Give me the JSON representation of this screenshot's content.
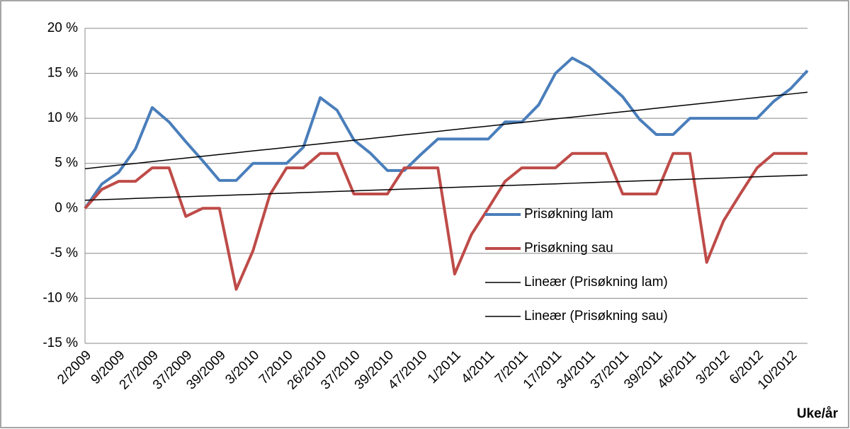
{
  "chart_data": {
    "type": "line",
    "x_label": "Uke/år",
    "categories": [
      "2/2009",
      null,
      "9/2009",
      null,
      "27/2009",
      null,
      "37/2009",
      null,
      "39/2009",
      null,
      "3/2010",
      null,
      "7/2010",
      null,
      "26/2010",
      null,
      "37/2010",
      null,
      "39/2010",
      null,
      "47/2010",
      null,
      "1/2011",
      null,
      "4/2011",
      null,
      "7/2011",
      null,
      "17/2011",
      null,
      "34/2011",
      null,
      "37/2011",
      null,
      "39/2011",
      null,
      "46/2011",
      null,
      "3/2012",
      null,
      "6/2012",
      null,
      "10/2012",
      null
    ],
    "series": [
      {
        "name": "Prisøkning lam",
        "color": "#4a7ebb",
        "width": 4,
        "values": [
          0,
          2.7,
          4,
          6.6,
          11.2,
          9.6,
          7.4,
          5.3,
          3.1,
          3.1,
          5,
          5,
          5,
          6.8,
          12.3,
          10.9,
          7.6,
          6.1,
          4.2,
          4.2,
          6,
          7.7,
          7.7,
          7.7,
          7.7,
          9.6,
          9.6,
          11.5,
          15,
          16.7,
          15.7,
          14.1,
          12.4,
          9.9,
          8.2,
          8.2,
          10,
          10,
          10,
          10,
          10,
          11.9,
          13.3,
          15.3
        ]
      },
      {
        "name": "Prisøkning sau",
        "color": "#be4b48",
        "width": 4,
        "values": [
          0,
          2.1,
          3,
          3,
          4.5,
          4.5,
          -0.9,
          0,
          0,
          -9,
          -4.7,
          1.5,
          4.5,
          4.5,
          6.1,
          6.1,
          1.6,
          1.6,
          1.6,
          4.5,
          4.5,
          4.5,
          -7.3,
          -2.9,
          0,
          3,
          4.5,
          4.5,
          4.5,
          6.1,
          6.1,
          6.1,
          1.6,
          1.6,
          1.6,
          6.1,
          6.1,
          -6,
          -1.4,
          1.6,
          4.5,
          6.1,
          6.1,
          6.1
        ]
      },
      {
        "name": "Lineær (Prisøkning lam)",
        "color": "#000000",
        "width": 1.5,
        "values": [
          4.4,
          4.6,
          4.8,
          4.99,
          5.19,
          5.39,
          5.59,
          5.78,
          5.98,
          6.18,
          6.38,
          6.57,
          6.77,
          6.97,
          7.17,
          7.37,
          7.56,
          7.76,
          7.96,
          8.16,
          8.35,
          8.55,
          8.75,
          8.95,
          9.14,
          9.34,
          9.54,
          9.74,
          9.94,
          10.13,
          10.33,
          10.53,
          10.73,
          10.92,
          11.12,
          11.32,
          11.52,
          11.71,
          11.91,
          12.11,
          12.31,
          12.5,
          12.7,
          12.9
        ]
      },
      {
        "name": "Lineær (Prisøkning sau)",
        "color": "#000000",
        "width": 1.5,
        "values": [
          0.9,
          0.97,
          1.03,
          1.1,
          1.16,
          1.23,
          1.29,
          1.36,
          1.42,
          1.49,
          1.55,
          1.62,
          1.68,
          1.75,
          1.81,
          1.88,
          1.94,
          2.01,
          2.07,
          2.14,
          2.2,
          2.27,
          2.33,
          2.4,
          2.46,
          2.53,
          2.59,
          2.66,
          2.72,
          2.79,
          2.85,
          2.92,
          2.98,
          3.05,
          3.11,
          3.18,
          3.24,
          3.31,
          3.37,
          3.44,
          3.5,
          3.57,
          3.63,
          3.7
        ]
      }
    ],
    "ylim": [
      -15,
      20
    ],
    "yticks": [
      {
        "value": -15,
        "label": "-15 %"
      },
      {
        "value": -10,
        "label": "-10 %"
      },
      {
        "value": -5,
        "label": "-5 %"
      },
      {
        "value": 0,
        "label": "0 %"
      },
      {
        "value": 5,
        "label": "5 %"
      },
      {
        "value": 10,
        "label": "10 %"
      },
      {
        "value": 15,
        "label": "15 %"
      },
      {
        "value": 20,
        "label": "20 %"
      }
    ],
    "grid": true,
    "legend": "inside"
  }
}
